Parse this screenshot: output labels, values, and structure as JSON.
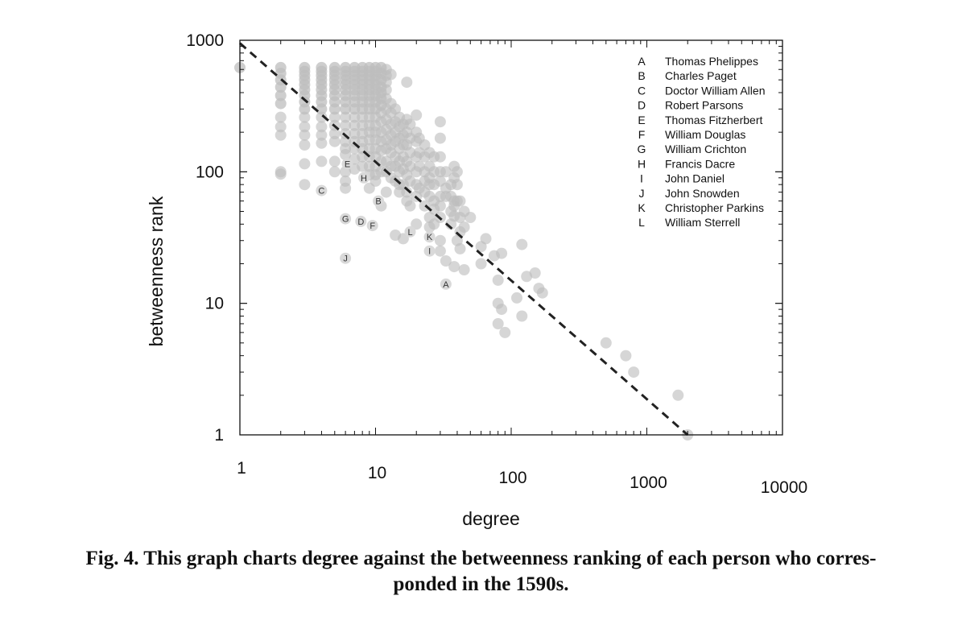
{
  "chart_data": {
    "type": "scatter",
    "title": "",
    "xlabel": "degree",
    "ylabel": "betweenness rank",
    "xscale": "log",
    "yscale": "log",
    "xlim": [
      1,
      10000
    ],
    "ylim": [
      1,
      1000
    ],
    "x_ticks": [
      "1",
      "10",
      "100",
      "1000",
      "10000"
    ],
    "y_ticks": [
      "1",
      "10",
      "100",
      "1000"
    ],
    "grid": false,
    "legend_position": "top-right",
    "point_color": "#bdbdbd",
    "line_color": "#222222",
    "fit_line": {
      "style": "dashed",
      "from": [
        1,
        950
      ],
      "to": [
        2000,
        1
      ]
    },
    "legend": [
      {
        "key": "A",
        "name": "Thomas Phelippes"
      },
      {
        "key": "B",
        "name": "Charles Paget"
      },
      {
        "key": "C",
        "name": "Doctor William Allen"
      },
      {
        "key": "D",
        "name": "Robert Parsons"
      },
      {
        "key": "E",
        "name": "Thomas Fitzherbert"
      },
      {
        "key": "F",
        "name": "William Douglas"
      },
      {
        "key": "G",
        "name": "William Crichton"
      },
      {
        "key": "H",
        "name": "Francis Dacre"
      },
      {
        "key": "I",
        "name": "John Daniel"
      },
      {
        "key": "J",
        "name": "John Snowden"
      },
      {
        "key": "K",
        "name": "Christopher Parkins"
      },
      {
        "key": "L",
        "name": "William Sterrell"
      }
    ],
    "labeled_points": [
      {
        "label": "A",
        "x": 33,
        "y": 14
      },
      {
        "label": "B",
        "x": 10.5,
        "y": 60
      },
      {
        "label": "C",
        "x": 4,
        "y": 72
      },
      {
        "label": "D",
        "x": 7.8,
        "y": 42
      },
      {
        "label": "E",
        "x": 6.2,
        "y": 115
      },
      {
        "label": "F",
        "x": 9.5,
        "y": 39
      },
      {
        "label": "G",
        "x": 6,
        "y": 44
      },
      {
        "label": "H",
        "x": 8.2,
        "y": 90
      },
      {
        "label": "I",
        "x": 25,
        "y": 25
      },
      {
        "label": "J",
        "x": 6,
        "y": 22
      },
      {
        "label": "K",
        "x": 25,
        "y": 32
      },
      {
        "label": "L",
        "x": 18,
        "y": 35
      }
    ],
    "points": [
      [
        1,
        620
      ],
      [
        2,
        620
      ],
      [
        2,
        560
      ],
      [
        2,
        500
      ],
      [
        2,
        440
      ],
      [
        2,
        380
      ],
      [
        2,
        330
      ],
      [
        2,
        260
      ],
      [
        2,
        220
      ],
      [
        2,
        190
      ],
      [
        2,
        100
      ],
      [
        2,
        96
      ],
      [
        3,
        620
      ],
      [
        3,
        580
      ],
      [
        3,
        540
      ],
      [
        3,
        500
      ],
      [
        3,
        460
      ],
      [
        3,
        420
      ],
      [
        3,
        380
      ],
      [
        3,
        340
      ],
      [
        3,
        300
      ],
      [
        3,
        260
      ],
      [
        3,
        220
      ],
      [
        3,
        190
      ],
      [
        3,
        160
      ],
      [
        3,
        115
      ],
      [
        3,
        80
      ],
      [
        4,
        620
      ],
      [
        4,
        580
      ],
      [
        4,
        540
      ],
      [
        4,
        500
      ],
      [
        4,
        460
      ],
      [
        4,
        420
      ],
      [
        4,
        380
      ],
      [
        4,
        340
      ],
      [
        4,
        300
      ],
      [
        4,
        260
      ],
      [
        4,
        220
      ],
      [
        4,
        190
      ],
      [
        4,
        165
      ],
      [
        4,
        120
      ],
      [
        5,
        620
      ],
      [
        5,
        580
      ],
      [
        5,
        540
      ],
      [
        5,
        500
      ],
      [
        5,
        460
      ],
      [
        5,
        420
      ],
      [
        5,
        380
      ],
      [
        5,
        340
      ],
      [
        5,
        300
      ],
      [
        5,
        260
      ],
      [
        5,
        225
      ],
      [
        5,
        195
      ],
      [
        5,
        170
      ],
      [
        5,
        120
      ],
      [
        5,
        100
      ],
      [
        6,
        620
      ],
      [
        6,
        580
      ],
      [
        6,
        540
      ],
      [
        6,
        500
      ],
      [
        6,
        460
      ],
      [
        6,
        420
      ],
      [
        6,
        380
      ],
      [
        6,
        340
      ],
      [
        6,
        300
      ],
      [
        6,
        260
      ],
      [
        6,
        225
      ],
      [
        6,
        195
      ],
      [
        6,
        170
      ],
      [
        6,
        150
      ],
      [
        6,
        135
      ],
      [
        6,
        100
      ],
      [
        6,
        85
      ],
      [
        6,
        75
      ],
      [
        7,
        620
      ],
      [
        7,
        580
      ],
      [
        7,
        540
      ],
      [
        7,
        500
      ],
      [
        7,
        460
      ],
      [
        7,
        420
      ],
      [
        7,
        380
      ],
      [
        7,
        340
      ],
      [
        7,
        300
      ],
      [
        7,
        260
      ],
      [
        7,
        225
      ],
      [
        7,
        195
      ],
      [
        7,
        170
      ],
      [
        7,
        150
      ],
      [
        7,
        125
      ],
      [
        7,
        105
      ],
      [
        8,
        620
      ],
      [
        8,
        580
      ],
      [
        8,
        540
      ],
      [
        8,
        500
      ],
      [
        8,
        460
      ],
      [
        8,
        420
      ],
      [
        8,
        380
      ],
      [
        8,
        340
      ],
      [
        8,
        300
      ],
      [
        8,
        260
      ],
      [
        8,
        225
      ],
      [
        8,
        195
      ],
      [
        8,
        170
      ],
      [
        8,
        150
      ],
      [
        8,
        130
      ],
      [
        8,
        110
      ],
      [
        9,
        620
      ],
      [
        9,
        580
      ],
      [
        9,
        540
      ],
      [
        9,
        500
      ],
      [
        9,
        460
      ],
      [
        9,
        420
      ],
      [
        9,
        380
      ],
      [
        9,
        340
      ],
      [
        9,
        300
      ],
      [
        9,
        260
      ],
      [
        9,
        225
      ],
      [
        9,
        200
      ],
      [
        9,
        175
      ],
      [
        9,
        150
      ],
      [
        9,
        130
      ],
      [
        9,
        110
      ],
      [
        9,
        95
      ],
      [
        9,
        75
      ],
      [
        10,
        620
      ],
      [
        10,
        580
      ],
      [
        10,
        540
      ],
      [
        10,
        500
      ],
      [
        10,
        460
      ],
      [
        10,
        420
      ],
      [
        10,
        380
      ],
      [
        10,
        340
      ],
      [
        10,
        300
      ],
      [
        10,
        260
      ],
      [
        10,
        225
      ],
      [
        10,
        200
      ],
      [
        10,
        175
      ],
      [
        10,
        150
      ],
      [
        10,
        130
      ],
      [
        10,
        110
      ],
      [
        10,
        95
      ],
      [
        10,
        85
      ],
      [
        11,
        620
      ],
      [
        11,
        560
      ],
      [
        11,
        500
      ],
      [
        11,
        440
      ],
      [
        11,
        400
      ],
      [
        11,
        360
      ],
      [
        11,
        320
      ],
      [
        11,
        280
      ],
      [
        11,
        240
      ],
      [
        11,
        200
      ],
      [
        11,
        170
      ],
      [
        11,
        145
      ],
      [
        11,
        120
      ],
      [
        11,
        100
      ],
      [
        11,
        55
      ],
      [
        12,
        600
      ],
      [
        12,
        540
      ],
      [
        12,
        480
      ],
      [
        12,
        420
      ],
      [
        12,
        360
      ],
      [
        12,
        300
      ],
      [
        12,
        250
      ],
      [
        12,
        210
      ],
      [
        12,
        175
      ],
      [
        12,
        150
      ],
      [
        12,
        120
      ],
      [
        12,
        100
      ],
      [
        12,
        70
      ],
      [
        13,
        550
      ],
      [
        13,
        330
      ],
      [
        13,
        280
      ],
      [
        13,
        230
      ],
      [
        13,
        190
      ],
      [
        13,
        160
      ],
      [
        13,
        140
      ],
      [
        13,
        110
      ],
      [
        13,
        90
      ],
      [
        14,
        300
      ],
      [
        14,
        240
      ],
      [
        14,
        200
      ],
      [
        14,
        170
      ],
      [
        14,
        130
      ],
      [
        14,
        110
      ],
      [
        14,
        85
      ],
      [
        14,
        33
      ],
      [
        15,
        260
      ],
      [
        15,
        220
      ],
      [
        15,
        180
      ],
      [
        15,
        150
      ],
      [
        15,
        120
      ],
      [
        15,
        100
      ],
      [
        15,
        80
      ],
      [
        15,
        70
      ],
      [
        16,
        230
      ],
      [
        16,
        190
      ],
      [
        16,
        160
      ],
      [
        16,
        130
      ],
      [
        16,
        105
      ],
      [
        16,
        80
      ],
      [
        16,
        31
      ],
      [
        17,
        480
      ],
      [
        17,
        250
      ],
      [
        17,
        200
      ],
      [
        17,
        160
      ],
      [
        17,
        120
      ],
      [
        17,
        95
      ],
      [
        17,
        70
      ],
      [
        17,
        60
      ],
      [
        18,
        230
      ],
      [
        18,
        180
      ],
      [
        18,
        140
      ],
      [
        18,
        110
      ],
      [
        18,
        85
      ],
      [
        18,
        55
      ],
      [
        20,
        270
      ],
      [
        20,
        200
      ],
      [
        20,
        170
      ],
      [
        20,
        130
      ],
      [
        20,
        100
      ],
      [
        20,
        80
      ],
      [
        20,
        65
      ],
      [
        20,
        40
      ],
      [
        21,
        180
      ],
      [
        21,
        140
      ],
      [
        21,
        110
      ],
      [
        21,
        75
      ],
      [
        23,
        160
      ],
      [
        23,
        130
      ],
      [
        23,
        100
      ],
      [
        23,
        85
      ],
      [
        23,
        70
      ],
      [
        23,
        55
      ],
      [
        25,
        140
      ],
      [
        25,
        110
      ],
      [
        25,
        90
      ],
      [
        25,
        80
      ],
      [
        25,
        65
      ],
      [
        25,
        45
      ],
      [
        25,
        38
      ],
      [
        27,
        130
      ],
      [
        27,
        100
      ],
      [
        27,
        80
      ],
      [
        27,
        60
      ],
      [
        27,
        52
      ],
      [
        27,
        40
      ],
      [
        30,
        240
      ],
      [
        30,
        180
      ],
      [
        30,
        130
      ],
      [
        30,
        100
      ],
      [
        30,
        85
      ],
      [
        30,
        65
      ],
      [
        30,
        55
      ],
      [
        30,
        45
      ],
      [
        30,
        30
      ],
      [
        30,
        25
      ],
      [
        33,
        100
      ],
      [
        33,
        75
      ],
      [
        33,
        65
      ],
      [
        33,
        21
      ],
      [
        36,
        80
      ],
      [
        36,
        65
      ],
      [
        36,
        50
      ],
      [
        36,
        40
      ],
      [
        38,
        110
      ],
      [
        38,
        90
      ],
      [
        38,
        60
      ],
      [
        38,
        55
      ],
      [
        38,
        46
      ],
      [
        38,
        19
      ],
      [
        40,
        100
      ],
      [
        40,
        80
      ],
      [
        40,
        60
      ],
      [
        40,
        30
      ],
      [
        42,
        60
      ],
      [
        42,
        45
      ],
      [
        42,
        35
      ],
      [
        42,
        26
      ],
      [
        45,
        50
      ],
      [
        45,
        38
      ],
      [
        45,
        18
      ],
      [
        50,
        45
      ],
      [
        60,
        27
      ],
      [
        60,
        20
      ],
      [
        65,
        31
      ],
      [
        75,
        23
      ],
      [
        80,
        10
      ],
      [
        80,
        7
      ],
      [
        80,
        15
      ],
      [
        85,
        24
      ],
      [
        85,
        9
      ],
      [
        90,
        6
      ],
      [
        110,
        11
      ],
      [
        120,
        28
      ],
      [
        120,
        8
      ],
      [
        130,
        16
      ],
      [
        150,
        17
      ],
      [
        160,
        13
      ],
      [
        170,
        12
      ],
      [
        500,
        5
      ],
      [
        700,
        4
      ],
      [
        800,
        3
      ],
      [
        1700,
        2
      ],
      [
        2000,
        1
      ]
    ]
  },
  "caption": {
    "line1": "Fig. 4.  This graph charts degree against the betweenness ranking of each person who corres-",
    "line2": "ponded in the 1590s."
  }
}
